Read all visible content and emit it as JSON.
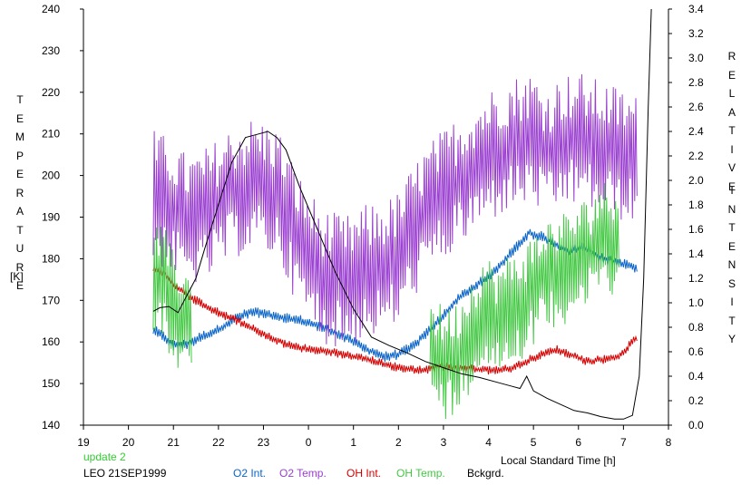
{
  "chart_data": {
    "type": "line",
    "x_axis": {
      "label": "Local Standard Time [h]",
      "range": [
        19,
        32
      ],
      "tick_values": [
        19,
        20,
        21,
        22,
        23,
        24,
        25,
        26,
        27,
        28,
        29,
        30,
        31,
        32
      ],
      "tick_labels": [
        "19",
        "20",
        "21",
        "22",
        "23",
        "0",
        "1",
        "2",
        "3",
        "4",
        "5",
        "6",
        "7",
        "8"
      ]
    },
    "y_left": {
      "label_letters": [
        "T",
        "E",
        "M",
        "P",
        "E",
        "R",
        "A",
        "T",
        "U",
        "R",
        "E"
      ],
      "unit": "[K]",
      "range": [
        140,
        240
      ],
      "ticks": [
        "140",
        "150",
        "160",
        "170",
        "180",
        "190",
        "200",
        "210",
        "220",
        "230",
        "240"
      ]
    },
    "y_right": {
      "label_word1": [
        "R",
        "E",
        "L",
        "A",
        "T",
        "I",
        "V",
        "E"
      ],
      "label_word2": [
        "I",
        "N",
        "T",
        "E",
        "N",
        "S",
        "I",
        "T",
        "Y"
      ],
      "range": [
        0.0,
        3.4
      ],
      "ticks": [
        "0.0",
        "0.2",
        "0.4",
        "0.6",
        "0.8",
        "1.0",
        "1.2",
        "1.4",
        "1.6",
        "1.8",
        "2.0",
        "2.2",
        "2.4",
        "2.6",
        "2.8",
        "3.0",
        "3.2",
        "3.4"
      ]
    },
    "grid": false,
    "legend_position": "bottom",
    "series": [
      {
        "name": "O2 Int.",
        "color": "#0a64c8",
        "axis": "right",
        "noise": 0.035,
        "x": [
          20.55,
          20.8,
          21.0,
          21.3,
          21.6,
          22.0,
          22.4,
          22.8,
          23.3,
          23.8,
          24.3,
          24.8,
          25.3,
          25.7,
          26.0,
          26.3,
          26.6,
          27.0,
          27.4,
          27.8,
          28.2,
          28.6,
          28.9,
          29.2,
          29.5,
          29.8,
          30.1,
          30.4,
          30.7,
          31.0,
          31.3
        ],
        "y": [
          0.78,
          0.72,
          0.65,
          0.66,
          0.72,
          0.78,
          0.88,
          0.93,
          0.88,
          0.86,
          0.8,
          0.72,
          0.62,
          0.56,
          0.58,
          0.64,
          0.74,
          0.9,
          1.06,
          1.16,
          1.28,
          1.45,
          1.57,
          1.54,
          1.48,
          1.43,
          1.46,
          1.38,
          1.34,
          1.32,
          1.28
        ]
      },
      {
        "name": "O2 Temp.",
        "color": "#9a3fd0",
        "axis": "left",
        "noise": 13,
        "x": [
          20.55,
          20.9,
          21.3,
          21.8,
          22.3,
          22.8,
          23.3,
          23.8,
          24.3,
          24.8,
          25.3,
          25.7,
          26.0,
          26.3,
          26.6,
          27.0,
          27.4,
          27.8,
          28.2,
          28.6,
          29.0,
          29.3,
          29.6,
          30.0,
          30.4,
          30.7,
          31.0,
          31.3
        ],
        "y": [
          195,
          193,
          189,
          191,
          196,
          198,
          196,
          184,
          176,
          174,
          177,
          178,
          180,
          186,
          191,
          195,
          199,
          203,
          206,
          208,
          209,
          205,
          208,
          209,
          207,
          206,
          205,
          203
        ]
      },
      {
        "name": "OH Int.",
        "color": "#d40000",
        "axis": "right",
        "noise": 0.03,
        "x": [
          20.55,
          20.8,
          21.1,
          21.5,
          22.0,
          22.5,
          23.0,
          23.5,
          24.0,
          24.5,
          25.0,
          25.5,
          26.0,
          26.5,
          27.0,
          27.5,
          28.0,
          28.5,
          29.0,
          29.5,
          29.8,
          30.2,
          30.6,
          30.9,
          31.3
        ],
        "y": [
          1.28,
          1.24,
          1.12,
          1.02,
          0.92,
          0.84,
          0.74,
          0.66,
          0.62,
          0.6,
          0.56,
          0.52,
          0.47,
          0.45,
          0.48,
          0.46,
          0.45,
          0.46,
          0.55,
          0.62,
          0.58,
          0.52,
          0.54,
          0.56,
          0.72
        ]
      },
      {
        "name": "OH Temp.",
        "color": "#44c844",
        "axis": "left",
        "noise": 11,
        "segments": [
          {
            "x": [
              20.55,
              20.8,
              21.0,
              21.2,
              21.4
            ],
            "y": [
              176,
              174,
              168,
              166,
              163
            ]
          },
          {
            "x": [
              26.7,
              27.0,
              27.3,
              27.6,
              27.9,
              28.2,
              28.5,
              28.8,
              29.1,
              29.4,
              29.7,
              30.0,
              30.3,
              30.5,
              30.7,
              30.9
            ],
            "y": [
              158,
              155,
              156,
              162,
              168,
              165,
              168,
              170,
              174,
              177,
              178,
              180,
              182,
              186,
              184,
              188
            ]
          }
        ]
      },
      {
        "name": "Bckgrd.",
        "color": "#000000",
        "axis": "right",
        "noise": 0,
        "x": [
          20.55,
          20.7,
          20.9,
          21.1,
          21.3,
          21.5,
          21.7,
          22.0,
          22.3,
          22.6,
          22.9,
          23.1,
          23.3,
          23.5,
          23.8,
          24.2,
          24.6,
          25.0,
          25.4,
          25.8,
          26.2,
          26.6,
          27.0,
          27.4,
          27.8,
          28.2,
          28.5,
          28.7,
          28.85,
          29.0,
          29.3,
          29.6,
          29.9,
          30.2,
          30.5,
          30.8,
          31.0,
          31.2,
          31.35,
          31.45,
          31.55,
          31.62
        ],
        "y": [
          0.93,
          0.96,
          0.97,
          0.92,
          1.06,
          1.2,
          1.45,
          1.8,
          2.15,
          2.35,
          2.38,
          2.4,
          2.35,
          2.25,
          1.95,
          1.6,
          1.25,
          0.95,
          0.72,
          0.65,
          0.59,
          0.52,
          0.47,
          0.42,
          0.39,
          0.35,
          0.32,
          0.3,
          0.4,
          0.28,
          0.22,
          0.17,
          0.12,
          0.1,
          0.07,
          0.05,
          0.05,
          0.08,
          0.4,
          1.2,
          2.6,
          3.4
        ]
      }
    ]
  },
  "footer": {
    "note": "update 2",
    "note_color": "#33cc33",
    "station": "LEO 21SEP1999",
    "legend": [
      {
        "label": "O2 Int.",
        "color": "#0a64c8"
      },
      {
        "label": "O2 Temp.",
        "color": "#9a3fd0"
      },
      {
        "label": "OH Int.",
        "color": "#d40000"
      },
      {
        "label": "OH Temp.",
        "color": "#44c844"
      },
      {
        "label": "Bckgrd.",
        "color": "#000000"
      }
    ]
  }
}
